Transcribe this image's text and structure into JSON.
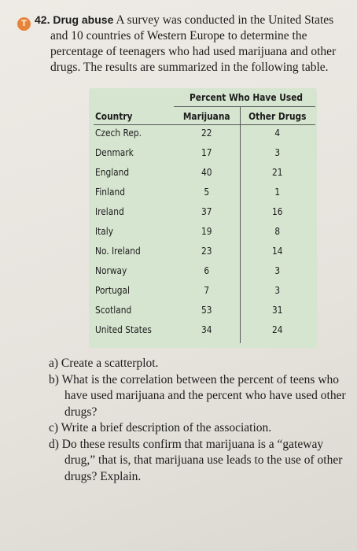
{
  "problem": {
    "badge": "T",
    "number": "42.",
    "topic": "Drug abuse",
    "text": "A survey was conducted in the United States and 10 countries of Western Europe to determine the percentage of teenagers who had used marijuana and other drugs. The results are summarized in the following table."
  },
  "table": {
    "group_header": "Percent Who Have Used",
    "columns": [
      "Country",
      "Marijuana",
      "Other Drugs"
    ],
    "rows": [
      [
        "Czech Rep.",
        22,
        4
      ],
      [
        "Denmark",
        17,
        3
      ],
      [
        "England",
        40,
        21
      ],
      [
        "Finland",
        5,
        1
      ],
      [
        "Ireland",
        37,
        16
      ],
      [
        "Italy",
        19,
        8
      ],
      [
        "No. Ireland",
        23,
        14
      ],
      [
        "Norway",
        6,
        3
      ],
      [
        "Portugal",
        7,
        3
      ],
      [
        "Scotland",
        53,
        31
      ],
      [
        "United States",
        34,
        24
      ]
    ]
  },
  "questions": [
    {
      "label": "a)",
      "text": "Create a scatterplot."
    },
    {
      "label": "b)",
      "text": "What is the correlation between the percent of teens who have used marijuana and the percent who have used other drugs?"
    },
    {
      "label": "c)",
      "text": "Write a brief description of the association."
    },
    {
      "label": "d)",
      "text": "Do these results confirm that marijuana is a “gateway drug,” that is, that marijuana use leads to the use of other drugs? Explain."
    }
  ]
}
